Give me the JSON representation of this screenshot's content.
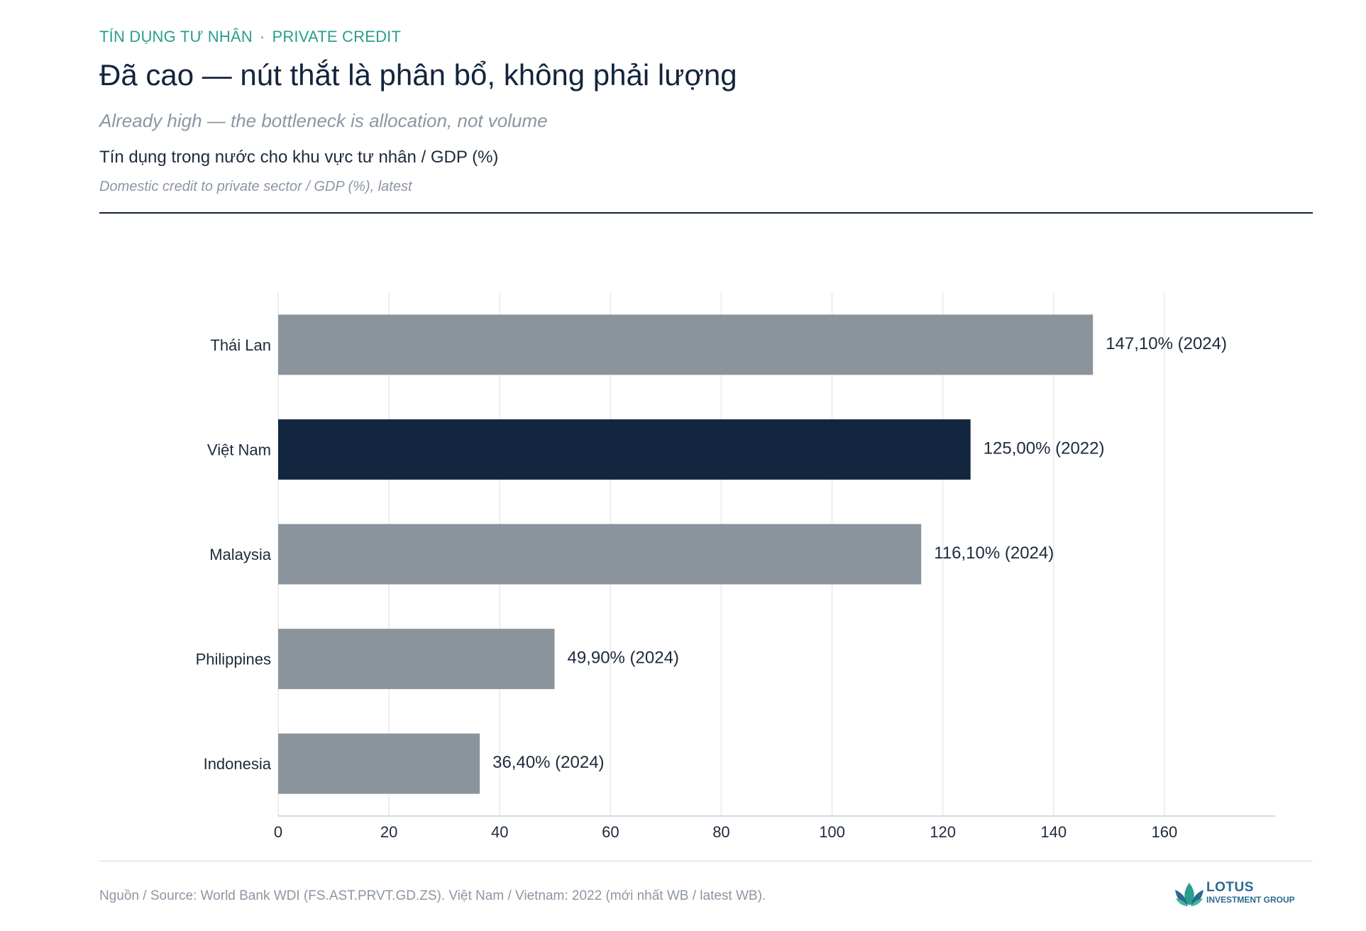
{
  "header": {
    "kicker_vi": "TÍN DỤNG TƯ NHÂN",
    "kicker_sep": "·",
    "kicker_en": "PRIVATE CREDIT",
    "title": "Đã cao — nút thắt là phân bổ, không phải lượng",
    "subtitle": "Already high — the bottleneck is allocation, not volume"
  },
  "chart_data": {
    "type": "bar",
    "orientation": "horizontal",
    "title": "Tín dụng trong nước cho khu vực tư nhân / GDP (%)",
    "subtitle": "Domestic credit to private sector / GDP (%), latest",
    "categories": [
      "Thái Lan",
      "Việt Nam",
      "Malaysia",
      "Philippines",
      "Indonesia"
    ],
    "values": [
      147.1,
      125.0,
      116.1,
      49.9,
      36.4
    ],
    "value_labels": [
      "147,10%",
      "125,00%",
      "116,10%",
      "49,90%",
      "36,40%"
    ],
    "years": [
      "(2024)",
      "(2022)",
      "(2024)",
      "(2024)",
      "(2024)"
    ],
    "highlight_category": "Việt Nam",
    "xlim": [
      0,
      180
    ],
    "xticks": [
      0,
      20,
      40,
      60,
      80,
      100,
      120,
      140,
      160
    ],
    "grid": true,
    "colors": {
      "bar": "#8b949d",
      "highlight": "#13263f",
      "grid": "#eceef0",
      "axis": "#c9cdd2"
    }
  },
  "footer": {
    "source": "Nguồn / Source: World Bank WDI (FS.AST.PRVT.GD.ZS). Việt Nam / Vietnam: 2022 (mới nhất WB / latest WB).",
    "logo_line1": "LOTUS",
    "logo_line2": "INVESTMENT GROUP"
  }
}
